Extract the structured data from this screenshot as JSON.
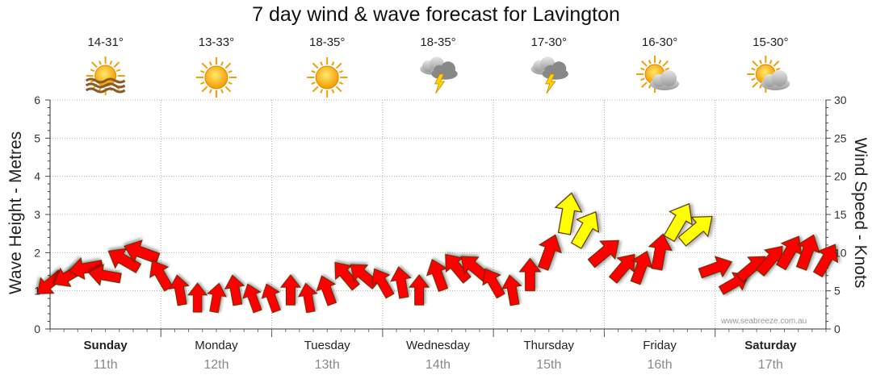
{
  "chart_data": {
    "type": "line",
    "title": "7 day wind & wave forecast for Lavington",
    "ylabel_left": "Wave Height - Metres",
    "ylabel_right": "Wind Speed - Knots",
    "ylim_left": [
      0,
      6
    ],
    "ylim_right": [
      0,
      30
    ],
    "yticks_left": [
      "0",
      "1",
      "2",
      "3",
      "4",
      "5",
      "6"
    ],
    "yticks_right": [
      "0",
      "5",
      "10",
      "15",
      "20",
      "25",
      "30"
    ],
    "grid": true,
    "watermark": "www.seabreeze.com.au",
    "days": [
      {
        "name": "Sunday",
        "date": "11th",
        "temp": "14-31°",
        "icon": "sun-haze-icon",
        "bold": true
      },
      {
        "name": "Monday",
        "date": "12th",
        "temp": "13-33°",
        "icon": "sun-icon",
        "bold": false
      },
      {
        "name": "Tuesday",
        "date": "13th",
        "temp": "18-35°",
        "icon": "sun-icon",
        "bold": false
      },
      {
        "name": "Wednesday",
        "date": "14th",
        "temp": "18-35°",
        "icon": "thunderstorm-icon",
        "bold": false
      },
      {
        "name": "Thursday",
        "date": "15th",
        "temp": "17-30°",
        "icon": "thunderstorm-icon",
        "bold": false
      },
      {
        "name": "Friday",
        "date": "16th",
        "temp": "16-30°",
        "icon": "partly-cloudy-icon",
        "bold": false
      },
      {
        "name": "Saturday",
        "date": "17th",
        "temp": "15-30°",
        "icon": "partly-cloudy-icon",
        "bold": true
      }
    ],
    "wind_series": {
      "name": "Wind speed (knots)",
      "unit": "knots",
      "color_normal": "#ff0000",
      "color_strong": "#ffff00",
      "x_days": [
        0.0,
        0.17,
        0.33,
        0.5,
        0.67,
        0.83,
        1.0,
        1.17,
        1.33,
        1.5,
        1.67,
        1.83,
        2.0,
        2.17,
        2.33,
        2.5,
        2.67,
        2.83,
        3.0,
        3.17,
        3.33,
        3.5,
        3.67,
        3.83,
        4.0,
        4.17,
        4.33,
        4.5,
        4.67,
        4.83,
        5.0,
        5.17,
        5.33,
        5.5,
        5.67,
        5.83,
        6.0,
        6.17,
        6.33,
        6.5,
        6.67,
        6.83,
        7.0
      ],
      "speed": [
        6,
        7,
        8,
        7,
        9,
        10,
        7,
        5,
        4,
        4,
        5,
        4,
        4,
        5,
        4,
        5,
        7,
        7,
        6,
        6,
        5,
        7,
        8,
        8,
        6,
        5,
        7,
        10,
        15,
        13,
        10,
        8,
        8,
        10,
        14,
        13,
        8,
        6,
        8,
        9,
        10,
        10,
        9
      ],
      "direction_deg": [
        50,
        60,
        80,
        100,
        120,
        110,
        150,
        170,
        180,
        190,
        170,
        160,
        160,
        180,
        170,
        160,
        140,
        130,
        150,
        170,
        180,
        160,
        140,
        130,
        150,
        170,
        180,
        200,
        190,
        210,
        230,
        220,
        200,
        190,
        210,
        230,
        250,
        240,
        230,
        220,
        210,
        200,
        210
      ]
    }
  }
}
